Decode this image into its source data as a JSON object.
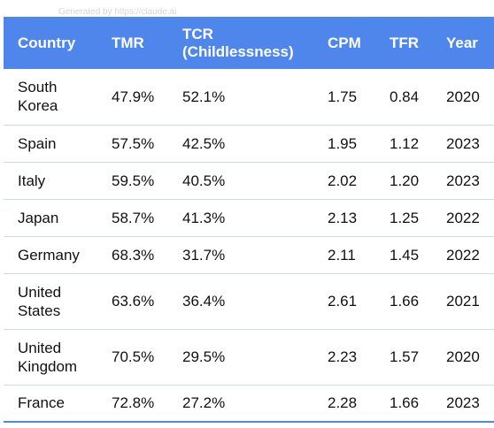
{
  "watermark": "Generated by https://claude.ai",
  "table": {
    "headers": {
      "country": "Country",
      "tmr": "TMR",
      "tcr_line1": "TCR",
      "tcr_line2": "(Childlessness)",
      "cpm": "CPM",
      "tfr": "TFR",
      "year": "Year"
    },
    "rows": [
      {
        "country_l1": "South",
        "country_l2": "Korea",
        "tmr": "47.9%",
        "tcr": "52.1%",
        "cpm": "1.75",
        "tfr": "0.84",
        "year": "2020"
      },
      {
        "country_l1": "Spain",
        "country_l2": "",
        "tmr": "57.5%",
        "tcr": "42.5%",
        "cpm": "1.95",
        "tfr": "1.12",
        "year": "2023"
      },
      {
        "country_l1": "Italy",
        "country_l2": "",
        "tmr": "59.5%",
        "tcr": "40.5%",
        "cpm": "2.02",
        "tfr": "1.20",
        "year": "2023"
      },
      {
        "country_l1": "Japan",
        "country_l2": "",
        "tmr": "58.7%",
        "tcr": "41.3%",
        "cpm": "2.13",
        "tfr": "1.25",
        "year": "2022"
      },
      {
        "country_l1": "Germany",
        "country_l2": "",
        "tmr": "68.3%",
        "tcr": "31.7%",
        "cpm": "2.11",
        "tfr": "1.45",
        "year": "2022"
      },
      {
        "country_l1": "United",
        "country_l2": "States",
        "tmr": "63.6%",
        "tcr": "36.4%",
        "cpm": "2.61",
        "tfr": "1.66",
        "year": "2021"
      },
      {
        "country_l1": "United",
        "country_l2": "Kingdom",
        "tmr": "70.5%",
        "tcr": "29.5%",
        "cpm": "2.23",
        "tfr": "1.57",
        "year": "2020"
      },
      {
        "country_l1": "France",
        "country_l2": "",
        "tmr": "72.8%",
        "tcr": "27.2%",
        "cpm": "2.28",
        "tfr": "1.66",
        "year": "2023"
      }
    ]
  },
  "colors": {
    "header_bg": "#4f86ec",
    "header_text": "#ffffff",
    "row_divider": "#cfd8e6"
  }
}
